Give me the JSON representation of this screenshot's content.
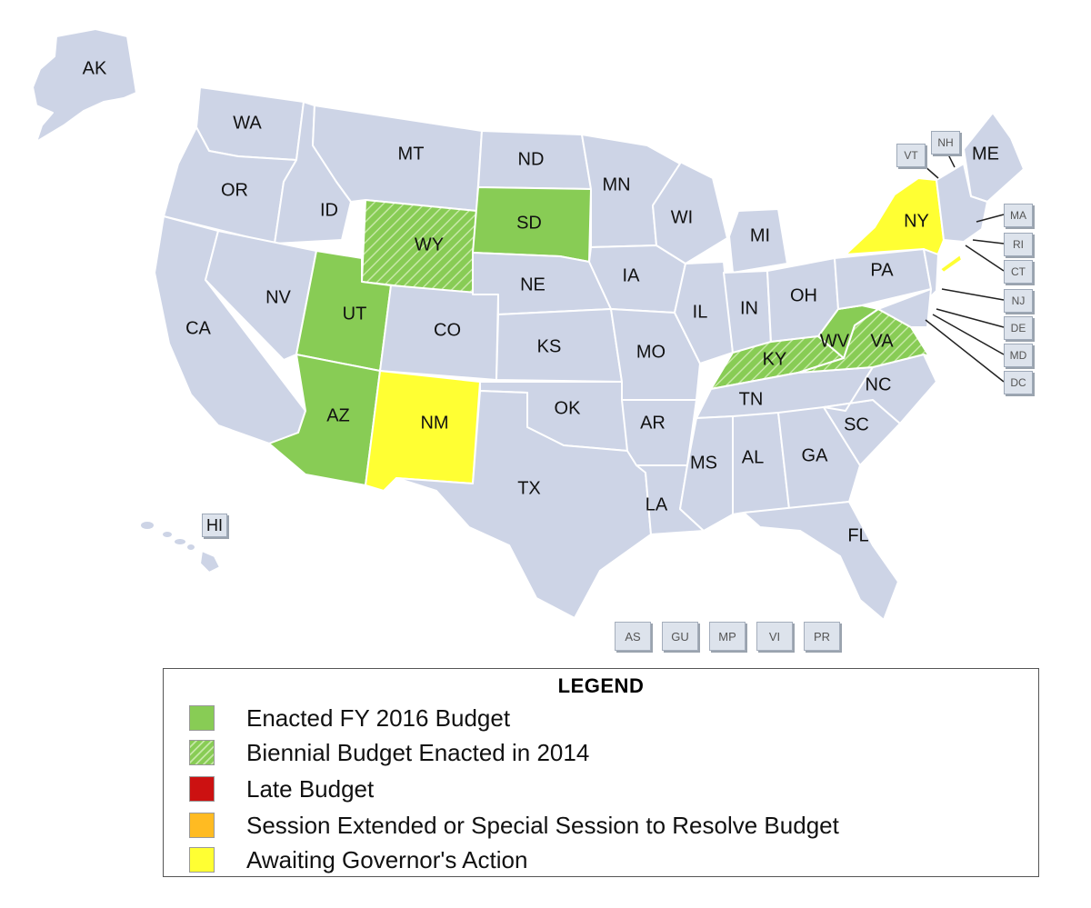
{
  "colors": {
    "default": "#cdd4e6",
    "enacted": "#88cc55",
    "biennial": "#88cc55",
    "late": "#cc1111",
    "extended": "#ffbb22",
    "awaiting": "#ffff33"
  },
  "states": {
    "AK": {
      "label": "AK",
      "status": "default"
    },
    "WA": {
      "label": "WA",
      "status": "default"
    },
    "OR": {
      "label": "OR",
      "status": "default"
    },
    "CA": {
      "label": "CA",
      "status": "default"
    },
    "ID": {
      "label": "ID",
      "status": "default"
    },
    "NV": {
      "label": "NV",
      "status": "default"
    },
    "MT": {
      "label": "MT",
      "status": "default"
    },
    "WY": {
      "label": "WY",
      "status": "biennial"
    },
    "UT": {
      "label": "UT",
      "status": "enacted"
    },
    "AZ": {
      "label": "AZ",
      "status": "enacted"
    },
    "CO": {
      "label": "CO",
      "status": "default"
    },
    "NM": {
      "label": "NM",
      "status": "awaiting"
    },
    "ND": {
      "label": "ND",
      "status": "default"
    },
    "SD": {
      "label": "SD",
      "status": "enacted"
    },
    "NE": {
      "label": "NE",
      "status": "default"
    },
    "KS": {
      "label": "KS",
      "status": "default"
    },
    "OK": {
      "label": "OK",
      "status": "default"
    },
    "TX": {
      "label": "TX",
      "status": "default"
    },
    "MN": {
      "label": "MN",
      "status": "default"
    },
    "IA": {
      "label": "IA",
      "status": "default"
    },
    "MO": {
      "label": "MO",
      "status": "default"
    },
    "AR": {
      "label": "AR",
      "status": "default"
    },
    "LA": {
      "label": "LA",
      "status": "default"
    },
    "WI": {
      "label": "WI",
      "status": "default"
    },
    "IL": {
      "label": "IL",
      "status": "default"
    },
    "MI": {
      "label": "MI",
      "status": "default"
    },
    "IN": {
      "label": "IN",
      "status": "default"
    },
    "OH": {
      "label": "OH",
      "status": "default"
    },
    "KY": {
      "label": "KY",
      "status": "biennial"
    },
    "TN": {
      "label": "TN",
      "status": "default"
    },
    "MS": {
      "label": "MS",
      "status": "default"
    },
    "AL": {
      "label": "AL",
      "status": "default"
    },
    "GA": {
      "label": "GA",
      "status": "default"
    },
    "FL": {
      "label": "FL",
      "status": "default"
    },
    "SC": {
      "label": "SC",
      "status": "default"
    },
    "NC": {
      "label": "NC",
      "status": "default"
    },
    "VA": {
      "label": "VA",
      "status": "biennial"
    },
    "WV": {
      "label": "WV",
      "status": "enacted"
    },
    "PA": {
      "label": "PA",
      "status": "default"
    },
    "NY": {
      "label": "NY",
      "status": "awaiting"
    },
    "ME": {
      "label": "ME",
      "status": "default"
    },
    "HI": {
      "label": "HI",
      "status": "default"
    }
  },
  "small_states": {
    "VT": "VT",
    "NH": "NH",
    "MA": "MA",
    "RI": "RI",
    "CT": "CT",
    "NJ": "NJ",
    "DE": "DE",
    "MD": "MD",
    "DC": "DC"
  },
  "territories": [
    "AS",
    "GU",
    "MP",
    "VI",
    "PR"
  ],
  "legend": {
    "title": "LEGEND",
    "items": [
      {
        "label": "Enacted FY 2016 Budget",
        "status": "enacted"
      },
      {
        "label": "Biennial Budget Enacted in 2014",
        "status": "biennial"
      },
      {
        "label": "Late Budget",
        "status": "late"
      },
      {
        "label": "Session Extended or Special Session to Resolve Budget",
        "status": "extended"
      },
      {
        "label": "Awaiting Governor's Action",
        "status": "awaiting"
      }
    ]
  }
}
